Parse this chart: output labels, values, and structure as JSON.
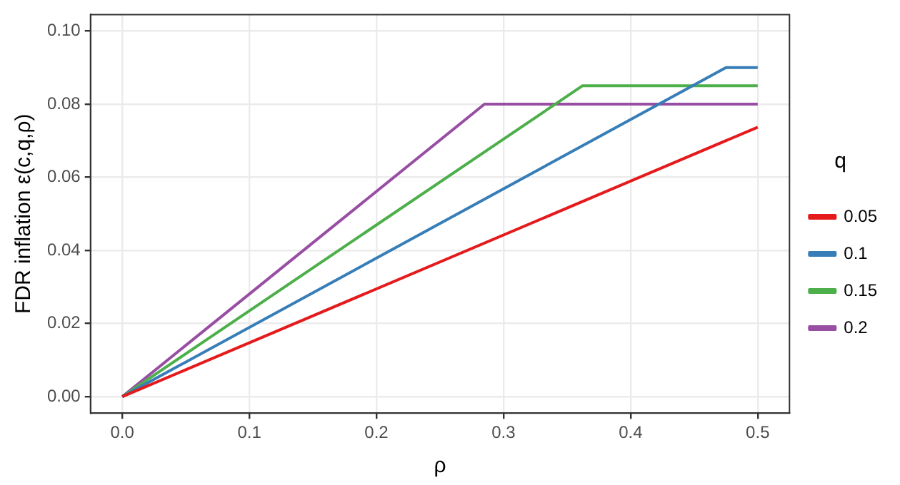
{
  "chart_data": {
    "type": "line",
    "xlabel": "ρ",
    "ylabel": "FDR inflation ε(c,q,ρ)",
    "legend_title": "q",
    "series": [
      {
        "name": "0.05",
        "color": "#e41a1c",
        "x": [
          0,
          0.5
        ],
        "values": [
          0,
          0.0737
        ]
      },
      {
        "name": "0.1",
        "color": "#377eb8",
        "x": [
          0,
          0.475,
          0.5
        ],
        "values": [
          0,
          0.09,
          0.09
        ]
      },
      {
        "name": "0.15",
        "color": "#4daf4a",
        "x": [
          0,
          0.362,
          0.5
        ],
        "values": [
          0,
          0.085,
          0.085
        ]
      },
      {
        "name": "0.2",
        "color": "#984ea3",
        "x": [
          0,
          0.285,
          0.5
        ],
        "values": [
          0,
          0.08,
          0.08
        ]
      }
    ],
    "xlim": [
      -0.025,
      0.525
    ],
    "xticks": [
      {
        "value": 0,
        "label": "0.0"
      },
      0.1,
      0.2,
      0.3,
      0.4,
      0.5
    ],
    "ylim": [
      -0.0045,
      0.1045
    ],
    "yticks": [
      {
        "value": 0,
        "label": "0.00"
      },
      0.02,
      0.04,
      0.06,
      0.08,
      {
        "value": 0.1,
        "label": "0.10"
      }
    ],
    "grid": true,
    "legend": "right",
    "marker": "none",
    "line_style": "solid"
  }
}
